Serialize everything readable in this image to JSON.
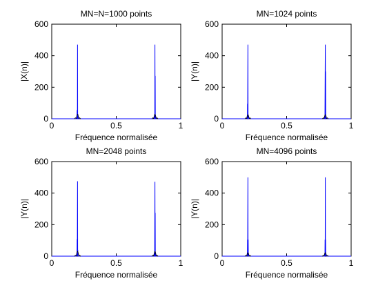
{
  "colors": {
    "background": "#ffffff",
    "axes": "#000000",
    "series": "#0000ff",
    "envelope": "#000000"
  },
  "chart_data": [
    {
      "type": "line",
      "title": "MN=N=1000 points",
      "xlabel": "Fréquence normalisée",
      "ylabel": "|X(n)|",
      "xlim": [
        0,
        1
      ],
      "ylim": [
        0,
        600
      ],
      "xticks": [
        "0",
        "0.5",
        "1"
      ],
      "yticks": [
        "0",
        "200",
        "400",
        "600"
      ],
      "grid": false,
      "series": [
        {
          "points": [
            [
              0,
              0
            ],
            [
              0.195,
              0
            ],
            [
              0.196,
              20
            ],
            [
              0.197,
              55
            ],
            [
              0.198,
              0
            ],
            [
              0.199,
              0
            ],
            [
              0.2,
              470
            ],
            [
              0.201,
              0
            ],
            [
              0.202,
              0
            ],
            [
              0.203,
              30
            ],
            [
              0.204,
              10
            ],
            [
              0.205,
              0
            ],
            [
              0.795,
              0
            ],
            [
              0.796,
              12
            ],
            [
              0.797,
              28
            ],
            [
              0.798,
              0
            ],
            [
              0.799,
              0
            ],
            [
              0.8,
              470
            ],
            [
              0.801,
              0
            ],
            [
              0.802,
              272
            ],
            [
              0.803,
              0
            ],
            [
              0.804,
              20
            ],
            [
              0.805,
              0
            ],
            [
              1,
              0
            ]
          ]
        }
      ],
      "envelope_peaks": [
        0.2,
        0.8
      ],
      "envelope_height": 28
    },
    {
      "type": "line",
      "title": "MN=1024 points",
      "xlabel": "Fréquence normalisée",
      "ylabel": "|Y(n)|",
      "xlim": [
        0,
        1
      ],
      "ylim": [
        0,
        600
      ],
      "xticks": [
        "0",
        "0.5",
        "1"
      ],
      "yticks": [
        "0",
        "200",
        "400",
        "600"
      ],
      "grid": false,
      "series": [
        {
          "points": [
            [
              0,
              0
            ],
            [
              0.193,
              0
            ],
            [
              0.194,
              10
            ],
            [
              0.195,
              20
            ],
            [
              0.196,
              0
            ],
            [
              0.197,
              95
            ],
            [
              0.198,
              0
            ],
            [
              0.2,
              470
            ],
            [
              0.201,
              0
            ],
            [
              0.203,
              25
            ],
            [
              0.204,
              0
            ],
            [
              0.794,
              0
            ],
            [
              0.795,
              12
            ],
            [
              0.796,
              0
            ],
            [
              0.797,
              0
            ],
            [
              0.8,
              470
            ],
            [
              0.801,
              0
            ],
            [
              0.802,
              300
            ],
            [
              0.803,
              0
            ],
            [
              0.804,
              18
            ],
            [
              0.805,
              0
            ],
            [
              1,
              0
            ]
          ]
        }
      ],
      "envelope_peaks": [
        0.2,
        0.8
      ],
      "envelope_height": 26
    },
    {
      "type": "line",
      "title": "MN=2048 points",
      "xlabel": "Fréquence normalisée",
      "ylabel": "|Y(n)|",
      "xlim": [
        0,
        1
      ],
      "ylim": [
        0,
        600
      ],
      "xticks": [
        "0",
        "0.5",
        "1"
      ],
      "yticks": [
        "0",
        "200",
        "400",
        "600"
      ],
      "grid": false,
      "series": [
        {
          "points": [
            [
              0,
              0
            ],
            [
              0.194,
              0
            ],
            [
              0.195,
              15
            ],
            [
              0.196,
              0
            ],
            [
              0.197,
              108
            ],
            [
              0.198,
              0
            ],
            [
              0.2,
              475
            ],
            [
              0.201,
              0
            ],
            [
              0.202,
              40
            ],
            [
              0.203,
              0
            ],
            [
              0.795,
              0
            ],
            [
              0.796,
              18
            ],
            [
              0.797,
              0
            ],
            [
              0.798,
              0
            ],
            [
              0.8,
              472
            ],
            [
              0.801,
              0
            ],
            [
              0.802,
              275
            ],
            [
              0.803,
              0
            ],
            [
              0.804,
              22
            ],
            [
              0.805,
              0
            ],
            [
              1,
              0
            ]
          ]
        }
      ],
      "envelope_peaks": [
        0.2,
        0.8
      ],
      "envelope_height": 30
    },
    {
      "type": "line",
      "title": "MN=4096 points",
      "xlabel": "Fréquence normalisée",
      "ylabel": "|Y(n)|",
      "xlim": [
        0,
        1
      ],
      "ylim": [
        0,
        600
      ],
      "xticks": [
        "0",
        "0.5",
        "1"
      ],
      "yticks": [
        "0",
        "200",
        "400",
        "600"
      ],
      "grid": false,
      "series": [
        {
          "points": [
            [
              0,
              0
            ],
            [
              0.194,
              0
            ],
            [
              0.195,
              20
            ],
            [
              0.196,
              0
            ],
            [
              0.197,
              105
            ],
            [
              0.198,
              0
            ],
            [
              0.2,
              500
            ],
            [
              0.201,
              0
            ],
            [
              0.202,
              105
            ],
            [
              0.203,
              0
            ],
            [
              0.204,
              18
            ],
            [
              0.205,
              0
            ],
            [
              0.795,
              0
            ],
            [
              0.796,
              20
            ],
            [
              0.797,
              0
            ],
            [
              0.798,
              105
            ],
            [
              0.799,
              0
            ],
            [
              0.8,
              500
            ],
            [
              0.801,
              0
            ],
            [
              0.802,
              105
            ],
            [
              0.803,
              0
            ],
            [
              0.804,
              18
            ],
            [
              0.805,
              0
            ],
            [
              1,
              0
            ]
          ]
        }
      ],
      "envelope_peaks": [
        0.2,
        0.8
      ],
      "envelope_height": 22
    }
  ]
}
